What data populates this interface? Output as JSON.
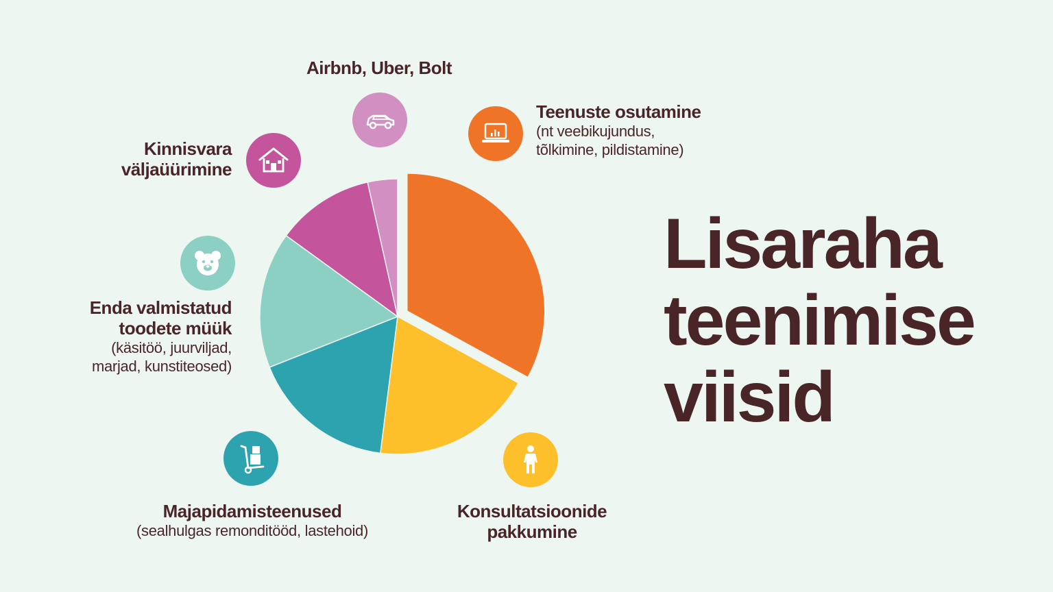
{
  "title_lines": [
    "Lisaraha",
    "teenimise",
    "viisid"
  ],
  "colors": {
    "background": "#eef6f2",
    "text": "#4a2527"
  },
  "chart_data": {
    "type": "pie",
    "title": "Lisaraha teenimise viisid",
    "exploded": "Teenuste osutamine",
    "slices": [
      {
        "label": "Teenuste osutamine",
        "sub": "(nt veebikujundus, tõlkimine, pildistamine)",
        "value": 33,
        "color": "#ef7427",
        "icon": "laptop-chart-icon"
      },
      {
        "label": "Konsultatsioonide pakkumine",
        "sub": "",
        "value": 19,
        "color": "#fdc02b",
        "icon": "person-icon"
      },
      {
        "label": "Majapidamisteenused",
        "sub": "(sealhulgas remonditööd, lastehoid)",
        "value": 17,
        "color": "#2ea3b0",
        "icon": "hand-truck-icon"
      },
      {
        "label": "Enda valmistatud toodete müük",
        "sub": "(käsitöö, juurviljad, marjad, kunstiteosed)",
        "value": 16,
        "color": "#8ccfc3",
        "icon": "teddy-bear-icon"
      },
      {
        "label": "Kinnisvara väljaüürimine",
        "sub": "",
        "value": 11.5,
        "color": "#c4549b",
        "icon": "house-icon"
      },
      {
        "label": "Airbnb, Uber, Bolt",
        "sub": "",
        "value": 3.5,
        "color": "#d28fc2",
        "icon": "car-icon"
      }
    ]
  },
  "labels": {
    "services": {
      "line1": "Teenuste osutamine",
      "sub1": "(nt veebikujundus,",
      "sub2": "tõlkimine, pildistamine)"
    },
    "consulting": {
      "line1": "Konsultatsioonide",
      "line2": "pakkumine"
    },
    "household": {
      "line1": "Majapidamisteenused",
      "sub1": "(sealhulgas remonditööd, lastehoid)"
    },
    "own_products": {
      "line1": "Enda valmistatud",
      "line2": "toodete müük",
      "sub1": "(käsitöö, juurviljad,",
      "sub2": "marjad, kunstiteosed)"
    },
    "real_estate": {
      "line1": "Kinnisvara",
      "line2": "väljaüürimine"
    },
    "sharing": {
      "line1": "Airbnb, Uber, Bolt"
    }
  }
}
